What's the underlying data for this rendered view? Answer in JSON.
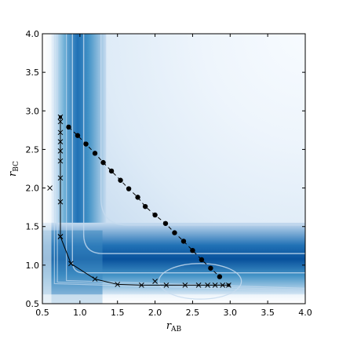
{
  "chart_data": {
    "type": "contour",
    "xlabel_main": "r",
    "xlabel_sub": "AB",
    "ylabel_main": "r",
    "ylabel_sub": "BC",
    "xlim": [
      0.5,
      4.0
    ],
    "ylim": [
      0.5,
      4.0
    ],
    "xticks": [
      "0.5",
      "1.0",
      "1.5",
      "2.0",
      "2.5",
      "3.0",
      "3.5",
      "4.0"
    ],
    "yticks": [
      "0.5",
      "1.0",
      "1.5",
      "2.0",
      "2.5",
      "3.0",
      "3.5",
      "4.0"
    ],
    "grid": false,
    "colormap": [
      "#ffffff",
      "#dce9f5",
      "#9ecae1",
      "#4292c6",
      "#08519c"
    ],
    "contour_line_color": "#c6dbef",
    "series": [
      {
        "marker": "x",
        "line_style": "solid",
        "x": [
          0.74,
          0.74,
          0.74,
          0.74,
          0.74,
          0.74,
          0.74,
          0.74,
          0.74,
          0.74,
          0.88,
          1.2,
          1.5,
          1.82,
          2.15,
          2.4,
          2.58,
          2.7,
          2.8,
          2.9,
          2.98
        ],
        "y": [
          2.92,
          2.86,
          2.72,
          2.6,
          2.48,
          2.35,
          2.13,
          1.82,
          1.37,
          1.37,
          1.02,
          0.82,
          0.75,
          0.74,
          0.74,
          0.74,
          0.74,
          0.74,
          0.74,
          0.74,
          0.74
        ]
      },
      {
        "marker": "o",
        "line_style": "dashed",
        "x": [
          0.85,
          0.97,
          1.08,
          1.2,
          1.31,
          1.42,
          1.54,
          1.65,
          1.77,
          1.87,
          2.0,
          2.14,
          2.26,
          2.38,
          2.5,
          2.62,
          2.74,
          2.86
        ],
        "y": [
          2.79,
          2.68,
          2.57,
          2.45,
          2.33,
          2.22,
          2.1,
          1.99,
          1.88,
          1.76,
          1.65,
          1.54,
          1.42,
          1.31,
          1.19,
          1.07,
          0.96,
          0.85
        ]
      }
    ],
    "extra_points": [
      {
        "x": 0.6,
        "y": 2.0,
        "marker": "x"
      },
      {
        "x": 2.0,
        "y": 0.79,
        "marker": "x"
      }
    ]
  }
}
